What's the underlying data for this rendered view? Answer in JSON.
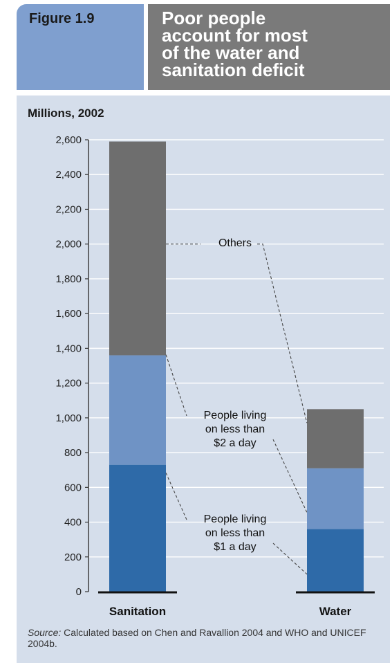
{
  "header": {
    "figure_label": "Figure 1.9",
    "title_lines": [
      "Poor people",
      "account for most",
      "of the water and",
      "sanitation deficit"
    ]
  },
  "source": {
    "label": "Source:",
    "text": "Calculated based on Chen and Ravallion 2004 and WHO and UNICEF 2004b."
  },
  "colors": {
    "header_left": "#7f9fcf",
    "header_right": "#7a7a7a",
    "panel": "#d5deeb",
    "lt1": "#2e6aa8",
    "lt2": "#6f93c5",
    "others": "#6e6e6e"
  },
  "chart_data": {
    "type": "bar",
    "stacked": true,
    "ylabel": "Millions, 2002",
    "ylim": [
      0,
      2600
    ],
    "yticks": [
      0,
      200,
      400,
      600,
      800,
      1000,
      1200,
      1400,
      1600,
      1800,
      2000,
      2200,
      2400,
      2600
    ],
    "ytick_labels": [
      "0",
      "200",
      "400",
      "600",
      "800",
      "1,000",
      "1,200",
      "1,400",
      "1,600",
      "1,800",
      "2,000",
      "2,200",
      "2,400",
      "2,600"
    ],
    "categories": [
      "Sanitation",
      "Water"
    ],
    "grid": true,
    "series": [
      {
        "name": "People living on less than $1 a day",
        "label_lines": [
          "People living",
          "on less than",
          "$1 a day"
        ],
        "values": [
          730,
          360
        ]
      },
      {
        "name": "People living on less than $2 a day",
        "label_lines": [
          "People living",
          "on less than",
          "$2 a day"
        ],
        "values": [
          630,
          350
        ]
      },
      {
        "name": "Others",
        "label_lines": [
          "Others"
        ],
        "values": [
          1230,
          340
        ]
      }
    ]
  }
}
